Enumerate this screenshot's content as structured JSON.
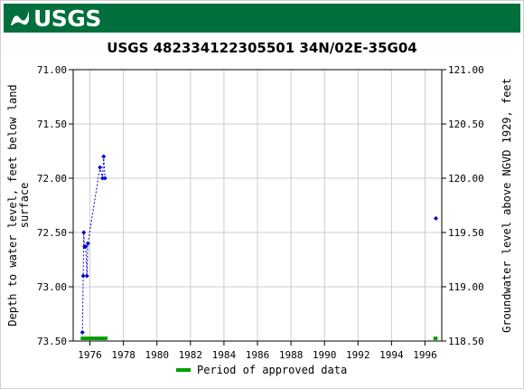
{
  "banner": {
    "logo_text": "USGS"
  },
  "chart_data": {
    "type": "scatter",
    "title": "USGS 482334122305501 34N/02E-35G04",
    "ylabel_left": "Depth to water level, feet below land surface",
    "ylabel_right": "Groundwater level above NGVD 1929, feet",
    "xlim": [
      1975.0,
      1997.0
    ],
    "ylim_left": [
      71.0,
      73.5
    ],
    "ylim_left_inverted": true,
    "ylim_right": [
      118.5,
      121.0
    ],
    "x_ticks": [
      1976,
      1978,
      1980,
      1982,
      1984,
      1986,
      1988,
      1990,
      1992,
      1994,
      1996
    ],
    "x_tick_labels": [
      "1976",
      "1978",
      "1980",
      "1982",
      "1984",
      "1986",
      "1988",
      "1990",
      "1992",
      "1994",
      "1996"
    ],
    "y_ticks_left": [
      71.0,
      71.5,
      72.0,
      72.5,
      73.0,
      73.5
    ],
    "y_tick_labels_left": [
      "71.00",
      "71.50",
      "72.00",
      "72.50",
      "73.00",
      "73.50"
    ],
    "y_ticks_right": [
      121.0,
      120.5,
      120.0,
      119.5,
      119.0,
      118.5
    ],
    "y_tick_labels_right": [
      "121.00",
      "120.50",
      "120.00",
      "119.50",
      "119.00",
      "118.50"
    ],
    "grid": true,
    "series": [
      {
        "color": "#0000cc",
        "connected": true,
        "x": [
          1975.55,
          1975.6,
          1975.63,
          1975.68,
          1975.75,
          1975.82,
          1975.88,
          1976.6,
          1976.75,
          1976.82,
          1976.9
        ],
        "y": [
          73.42,
          72.9,
          72.5,
          72.63,
          72.63,
          72.9,
          72.6,
          71.9,
          72.0,
          71.8,
          72.0
        ]
      },
      {
        "color": "#0000cc",
        "connected": false,
        "x": [
          1996.65
        ],
        "y": [
          72.37
        ]
      }
    ],
    "approved_periods": [
      {
        "start": 1975.45,
        "end": 1977.05
      },
      {
        "start": 1996.5,
        "end": 1996.75
      }
    ],
    "approved_color": "#00a000",
    "legend": {
      "label": "Period of approved data",
      "placement": "bottom"
    }
  }
}
